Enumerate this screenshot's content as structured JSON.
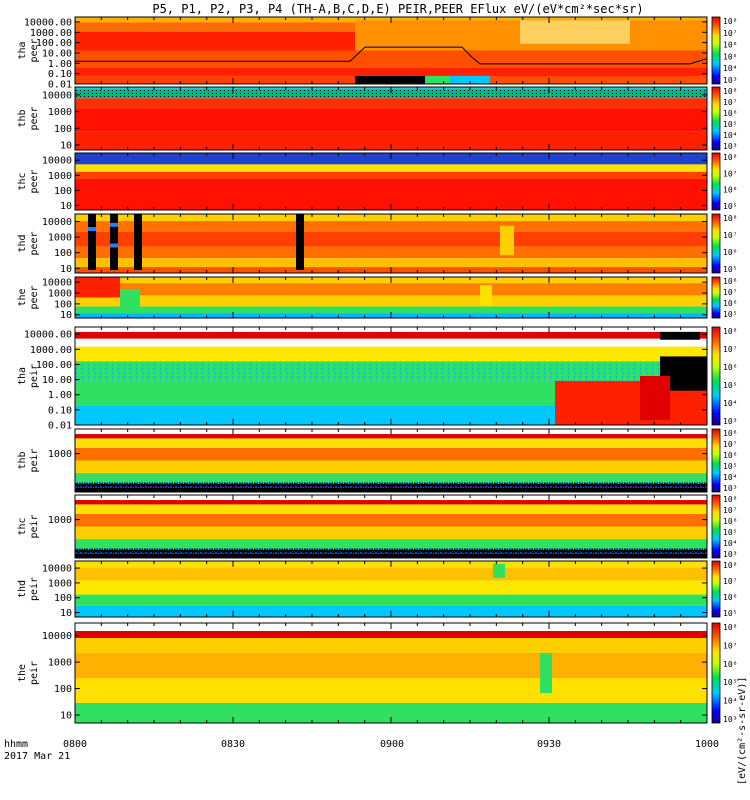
{
  "chart_data": {
    "type": "heatmap",
    "title": "P5, P1, P2, P3, P4 (TH-A,B,C,D,E) PEIR,PEER EFlux eV/(eV*cm²*sec*sr)",
    "time_label": "hhmm",
    "date_label": "2017 Mar 21",
    "x_ticks": [
      "0800",
      "0830",
      "0900",
      "0930",
      "1000"
    ],
    "x_range": [
      "08:00",
      "10:00"
    ],
    "colorbar_unit": "[eV/(cm²-s-sr-eV)]",
    "colorbar_levels": [
      "10⁸",
      "10⁷",
      "10⁶",
      "10⁵",
      "10⁴",
      "10³",
      "10²"
    ],
    "panels": [
      {
        "probe": "tha",
        "species": "peer",
        "label_top": "tha",
        "label_bot": "peer",
        "y_ticks": [
          "10000.00",
          "1000.00",
          "100.00",
          "10.00",
          "1.00",
          "0.10",
          "0.01"
        ],
        "y_range": [
          0.01,
          30000
        ]
      },
      {
        "probe": "thb",
        "species": "peer",
        "label_top": "thb",
        "label_bot": "peer",
        "y_ticks": [
          "10000",
          "1000",
          "100",
          "10"
        ],
        "y_range": [
          5,
          30000
        ]
      },
      {
        "probe": "thc",
        "species": "peer",
        "label_top": "thc",
        "label_bot": "peer",
        "y_ticks": [
          "10000",
          "1000",
          "100",
          "10"
        ],
        "y_range": [
          5,
          30000
        ]
      },
      {
        "probe": "thd",
        "species": "peer",
        "label_top": "thd",
        "label_bot": "peer",
        "y_ticks": [
          "10000",
          "1000",
          "100",
          "10"
        ],
        "y_range": [
          5,
          30000
        ]
      },
      {
        "probe": "the",
        "species": "peer",
        "label_top": "the",
        "label_bot": "peer",
        "y_ticks": [
          "10000",
          "1000",
          "100",
          "10"
        ],
        "y_range": [
          5,
          30000
        ]
      },
      {
        "probe": "tha",
        "species": "peir",
        "label_top": "tha",
        "label_bot": "peir",
        "y_ticks": [
          "10000.00",
          "1000.00",
          "100.00",
          "10.00",
          "1.00",
          "0.10",
          "0.01"
        ],
        "y_range": [
          0.01,
          30000
        ]
      },
      {
        "probe": "thb",
        "species": "peir",
        "label_top": "thb",
        "label_bot": "peir",
        "y_ticks": [
          "1000"
        ],
        "y_range": [
          5,
          30000
        ]
      },
      {
        "probe": "thc",
        "species": "peir",
        "label_top": "thc",
        "label_bot": "peir",
        "y_ticks": [
          "1000"
        ],
        "y_range": [
          5,
          30000
        ]
      },
      {
        "probe": "thd",
        "species": "peir",
        "label_top": "thd",
        "label_bot": "peir",
        "y_ticks": [
          "10000",
          "1000",
          "100",
          "10"
        ],
        "y_range": [
          5,
          30000
        ]
      },
      {
        "probe": "the",
        "species": "peir",
        "label_top": "the",
        "label_bot": "peir",
        "y_ticks": [
          "10000",
          "1000",
          "100",
          "10"
        ],
        "y_range": [
          5,
          30000
        ]
      }
    ]
  }
}
